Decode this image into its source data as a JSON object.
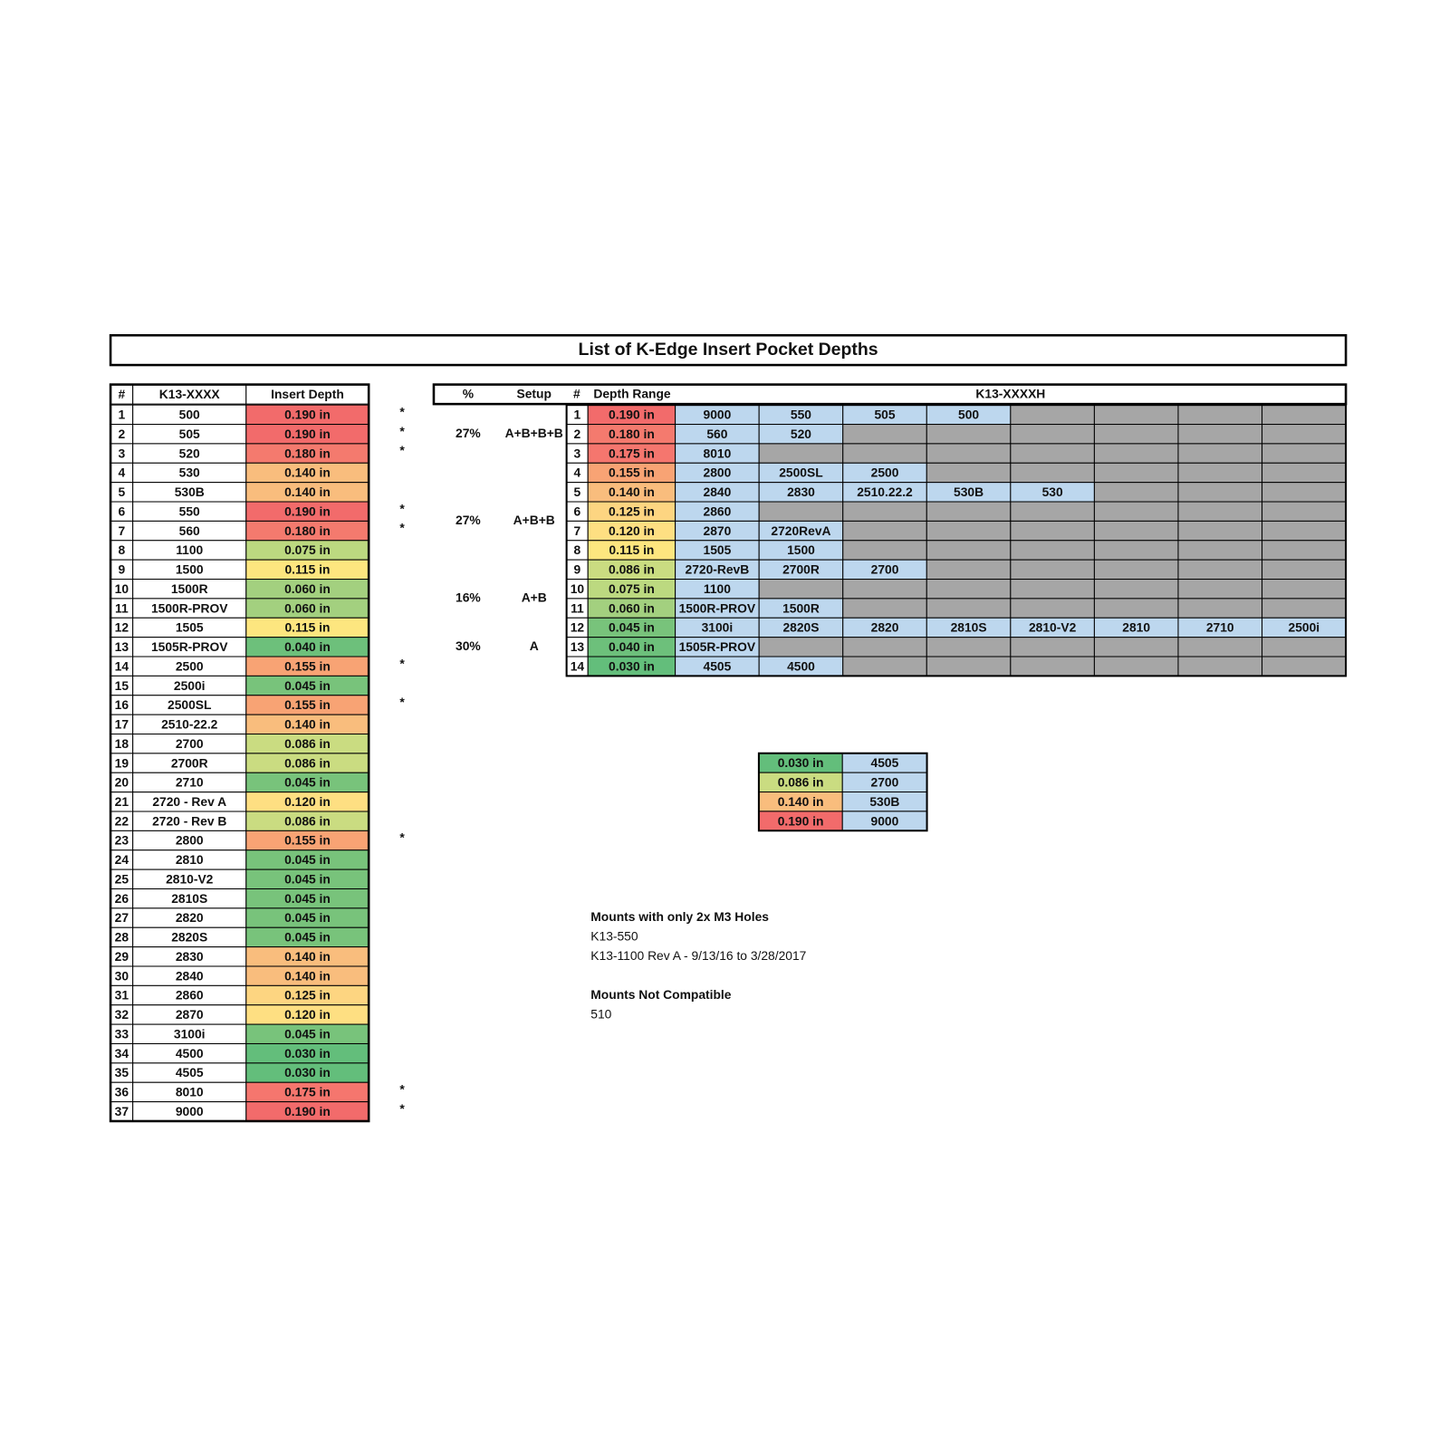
{
  "title": "List of K-Edge Insert Pocket Depths",
  "left_table": {
    "headers": [
      "#",
      "K13-XXXX",
      "Insert Depth"
    ],
    "rows": [
      {
        "n": "1",
        "model": "500",
        "depth": "0.190 in",
        "color": "#f26b6b",
        "note": "*"
      },
      {
        "n": "2",
        "model": "505",
        "depth": "0.190 in",
        "color": "#f26b6b",
        "note": "*"
      },
      {
        "n": "3",
        "model": "520",
        "depth": "0.180 in",
        "color": "#f47a6e",
        "note": "*"
      },
      {
        "n": "4",
        "model": "530",
        "depth": "0.140 in",
        "color": "#f9bd7d"
      },
      {
        "n": "5",
        "model": "530B",
        "depth": "0.140 in",
        "color": "#f9bd7d"
      },
      {
        "n": "6",
        "model": "550",
        "depth": "0.190 in",
        "color": "#f26b6b",
        "note": "*"
      },
      {
        "n": "7",
        "model": "560",
        "depth": "0.180 in",
        "color": "#f47a6e",
        "note": "*"
      },
      {
        "n": "8",
        "model": "1100",
        "depth": "0.075 in",
        "color": "#bcd980"
      },
      {
        "n": "9",
        "model": "1500",
        "depth": "0.115 in",
        "color": "#fde67f"
      },
      {
        "n": "10",
        "model": "1500R",
        "depth": "0.060 in",
        "color": "#a3d07f"
      },
      {
        "n": "11",
        "model": "1500R-PROV",
        "depth": "0.060 in",
        "color": "#a3d07f"
      },
      {
        "n": "12",
        "model": "1505",
        "depth": "0.115 in",
        "color": "#fde67f"
      },
      {
        "n": "13",
        "model": "1505R-PROV",
        "depth": "0.040 in",
        "color": "#6dc07b"
      },
      {
        "n": "14",
        "model": "2500",
        "depth": "0.155 in",
        "color": "#f8a374",
        "note": "*"
      },
      {
        "n": "15",
        "model": "2500i",
        "depth": "0.045 in",
        "color": "#78c37b"
      },
      {
        "n": "16",
        "model": "2500SL",
        "depth": "0.155 in",
        "color": "#f8a374",
        "note": "*"
      },
      {
        "n": "17",
        "model": "2510-22.2",
        "depth": "0.140 in",
        "color": "#f9bd7d"
      },
      {
        "n": "18",
        "model": "2700",
        "depth": "0.086 in",
        "color": "#cadc81"
      },
      {
        "n": "19",
        "model": "2700R",
        "depth": "0.086 in",
        "color": "#cadc81"
      },
      {
        "n": "20",
        "model": "2710",
        "depth": "0.045 in",
        "color": "#78c37b"
      },
      {
        "n": "21",
        "model": "2720 - Rev A",
        "depth": "0.120 in",
        "color": "#fedf82"
      },
      {
        "n": "22",
        "model": "2720 - Rev B",
        "depth": "0.086 in",
        "color": "#cadc81"
      },
      {
        "n": "23",
        "model": "2800",
        "depth": "0.155 in",
        "color": "#f8a374",
        "note": "*"
      },
      {
        "n": "24",
        "model": "2810",
        "depth": "0.045 in",
        "color": "#78c37b"
      },
      {
        "n": "25",
        "model": "2810-V2",
        "depth": "0.045 in",
        "color": "#78c37b"
      },
      {
        "n": "26",
        "model": "2810S",
        "depth": "0.045 in",
        "color": "#78c37b"
      },
      {
        "n": "27",
        "model": "2820",
        "depth": "0.045 in",
        "color": "#78c37b"
      },
      {
        "n": "28",
        "model": "2820S",
        "depth": "0.045 in",
        "color": "#78c37b"
      },
      {
        "n": "29",
        "model": "2830",
        "depth": "0.140 in",
        "color": "#f9bd7d"
      },
      {
        "n": "30",
        "model": "2840",
        "depth": "0.140 in",
        "color": "#f9bd7d"
      },
      {
        "n": "31",
        "model": "2860",
        "depth": "0.125 in",
        "color": "#fdd581"
      },
      {
        "n": "32",
        "model": "2870",
        "depth": "0.120 in",
        "color": "#fedf82"
      },
      {
        "n": "33",
        "model": "3100i",
        "depth": "0.045 in",
        "color": "#78c37b"
      },
      {
        "n": "34",
        "model": "4500",
        "depth": "0.030 in",
        "color": "#63be7b"
      },
      {
        "n": "35",
        "model": "4505",
        "depth": "0.030 in",
        "color": "#63be7b"
      },
      {
        "n": "36",
        "model": "8010",
        "depth": "0.175 in",
        "color": "#f5766e",
        "note": "*"
      },
      {
        "n": "37",
        "model": "9000",
        "depth": "0.190 in",
        "color": "#f26b6b",
        "note": "*"
      }
    ]
  },
  "right_table": {
    "headers": [
      "%",
      "Setup",
      "#",
      "Depth Range",
      "K13-XXXXH"
    ],
    "groups": [
      {
        "percent": "27%",
        "setup": "A+B+B+B",
        "rows": [
          {
            "n": "1",
            "depth": "0.190 in",
            "color": "#f26b6b",
            "models": [
              "9000",
              "550",
              "505",
              "500"
            ]
          },
          {
            "n": "2",
            "depth": "0.180 in",
            "color": "#f47a6e",
            "models": [
              "560",
              "520"
            ]
          },
          {
            "n": "3",
            "depth": "0.175 in",
            "color": "#f5766e",
            "models": [
              "8010"
            ]
          }
        ]
      },
      {
        "percent": "27%",
        "setup": "A+B+B",
        "rows": [
          {
            "n": "4",
            "depth": "0.155 in",
            "color": "#f8a374",
            "models": [
              "2800",
              "2500SL",
              "2500"
            ]
          },
          {
            "n": "5",
            "depth": "0.140 in",
            "color": "#f9bd7d",
            "models": [
              "2840",
              "2830",
              "2510.22.2",
              "530B",
              "530"
            ]
          },
          {
            "n": "6",
            "depth": "0.125 in",
            "color": "#fdd581",
            "models": [
              "2860"
            ]
          },
          {
            "n": "7",
            "depth": "0.120 in",
            "color": "#fedf82",
            "models": [
              "2870",
              "2720RevA"
            ]
          },
          {
            "n": "8",
            "depth": "0.115 in",
            "color": "#fde67f",
            "models": [
              "1505",
              "1500"
            ]
          },
          {
            "n": "9",
            "depth": "0.086 in",
            "color": "#cadc81",
            "models": [
              "2720-RevB",
              "2700R",
              "2700"
            ]
          }
        ]
      },
      {
        "percent": "16%",
        "setup": "A+B",
        "rows": [
          {
            "n": "10",
            "depth": "0.075 in",
            "color": "#bcd980",
            "models": [
              "1100"
            ]
          },
          {
            "n": "11",
            "depth": "0.060 in",
            "color": "#a3d07f",
            "models": [
              "1500R-PROV",
              "1500R"
            ]
          }
        ]
      },
      {
        "percent": "30%",
        "setup": "A",
        "rows": [
          {
            "n": "12",
            "depth": "0.045 in",
            "color": "#78c37b",
            "models": [
              "3100i",
              "2820S",
              "2820",
              "2810S",
              "2810-V2",
              "2810",
              "2710",
              "2500i"
            ]
          },
          {
            "n": "13",
            "depth": "0.040 in",
            "color": "#6dc07b",
            "models": [
              "1505R-PROV"
            ]
          },
          {
            "n": "14",
            "depth": "0.030 in",
            "color": "#63be7b",
            "models": [
              "4505",
              "4500"
            ]
          }
        ]
      }
    ]
  },
  "key_table": {
    "rows": [
      {
        "depth": "0.030 in",
        "color": "#63be7b",
        "model": "4505"
      },
      {
        "depth": "0.086 in",
        "color": "#cadc81",
        "model": "2700"
      },
      {
        "depth": "0.140 in",
        "color": "#f9bd7d",
        "model": "530B"
      },
      {
        "depth": "0.190 in",
        "color": "#f26b6b",
        "model": "9000"
      }
    ]
  },
  "notes": [
    {
      "heading": "Mounts with only 2x M3 Holes",
      "lines": [
        "K13-550",
        "K13-1100 Rev A - 9/13/16 to 3/28/2017"
      ]
    },
    {
      "heading": "Mounts Not Compatible",
      "lines": [
        "510"
      ]
    }
  ]
}
